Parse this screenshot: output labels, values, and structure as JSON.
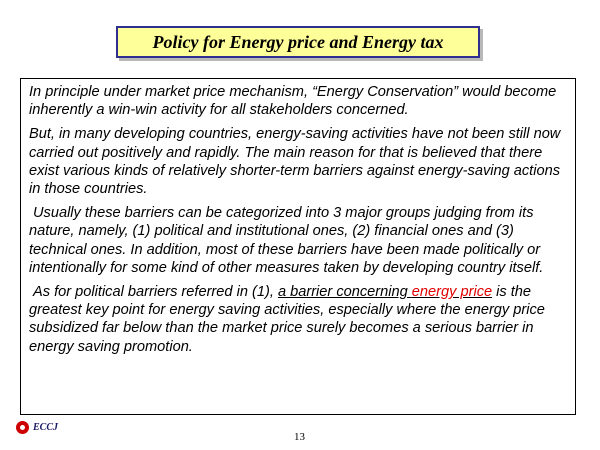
{
  "title": "Policy for Energy price and Energy tax",
  "paragraphs": {
    "p1": "In principle under market price mechanism, “Energy Conservation” would become inherently a win-win activity for all stakeholders concerned.",
    "p2": "But, in many developing countries, energy-saving activities have not been still now carried out positively and rapidly.  The main reason for that is believed that there exist various kinds of relatively shorter-term barriers against energy-saving actions in those countries.",
    "p3": "Usually these barriers can be categorized into 3 major groups judging from its nature, namely, (1) political and institutional ones, (2) financial ones and (3) technical ones. In addition, most of these barriers have been made politically or intentionally for some kind of other measures taken by developing country itself.",
    "p4": {
      "lead": "As for political barriers referred in (1), ",
      "underlined": "a barrier concerning ",
      "highlight": "energy price",
      "rest": " is the greatest key point for energy saving activities, especially where the energy price subsidized far below than the market price surely becomes a serious barrier in energy saving promotion."
    }
  },
  "footer": {
    "logo_text": "ECCJ",
    "page_number": "13"
  },
  "colors": {
    "title_background": "#ffff99",
    "title_border": "#2f2f8f",
    "highlight": "#e00000",
    "logo": "#cc0000"
  }
}
